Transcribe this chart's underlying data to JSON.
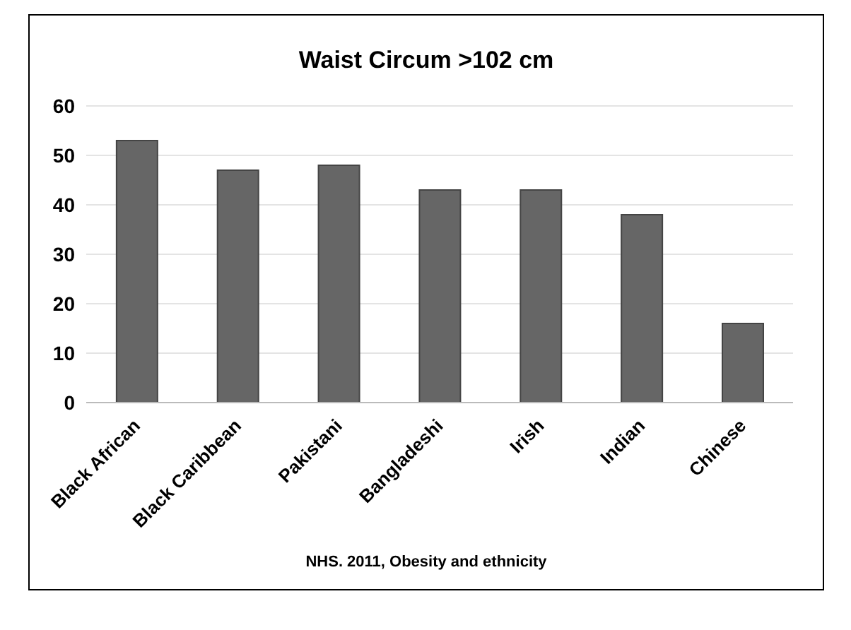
{
  "chart_data": {
    "type": "bar",
    "title": "Waist Circum >102 cm",
    "categories": [
      "Black African",
      "Black Caribbean",
      "Pakistani",
      "Bangladeshi",
      "Irish",
      "Indian",
      "Chinese"
    ],
    "values": [
      53,
      47,
      48,
      43,
      43,
      38,
      16
    ],
    "color": "#666666",
    "ylim": [
      0,
      60
    ],
    "yticks": [
      0,
      10,
      20,
      30,
      40,
      50,
      60
    ],
    "grid": "y",
    "annotations": [
      "NHS. 2011, Obesity and ethnicity"
    ]
  }
}
